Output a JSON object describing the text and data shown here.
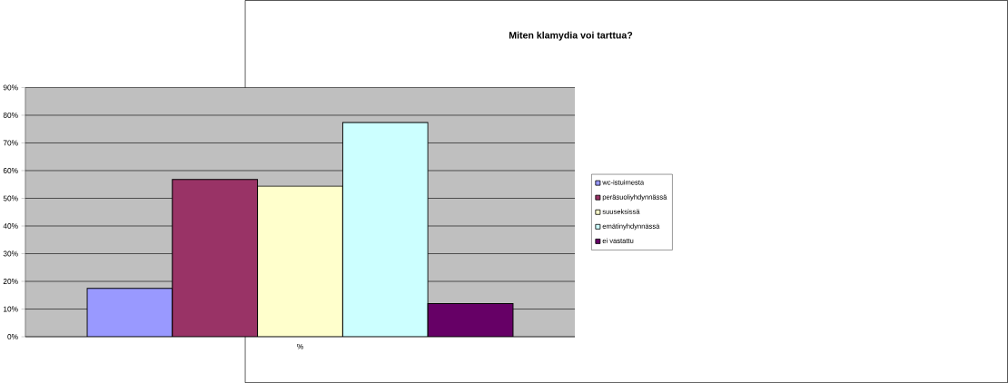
{
  "chart_data": {
    "type": "bar",
    "title": "Miten klamydia voi tarttua?",
    "categories": [
      "%"
    ],
    "series": [
      {
        "name": "wc-istuimesta",
        "color": "#9999ff",
        "values": [
          17.5
        ]
      },
      {
        "name": "peräsuoliyhdynnässä",
        "color": "#993366",
        "values": [
          56.8
        ]
      },
      {
        "name": "suuseksissä",
        "color": "#ffffcc",
        "values": [
          54.4
        ]
      },
      {
        "name": "emätinyhdynnässä",
        "color": "#ccffff",
        "values": [
          77.4
        ]
      },
      {
        "name": "ei vastattu",
        "color": "#660066",
        "values": [
          12.0
        ]
      }
    ],
    "ylim": [
      0,
      90
    ],
    "yticks": [
      {
        "value": 0,
        "label": "0%"
      },
      {
        "value": 10,
        "label": "10%"
      },
      {
        "value": 20,
        "label": "20%"
      },
      {
        "value": 30,
        "label": "30%"
      },
      {
        "value": 40,
        "label": "40%"
      },
      {
        "value": 50,
        "label": "50%"
      },
      {
        "value": 60,
        "label": "60%"
      },
      {
        "value": 70,
        "label": "70%"
      },
      {
        "value": 80,
        "label": "80%"
      },
      {
        "value": 90,
        "label": "90%"
      }
    ],
    "grid": "y",
    "legend": "right"
  }
}
